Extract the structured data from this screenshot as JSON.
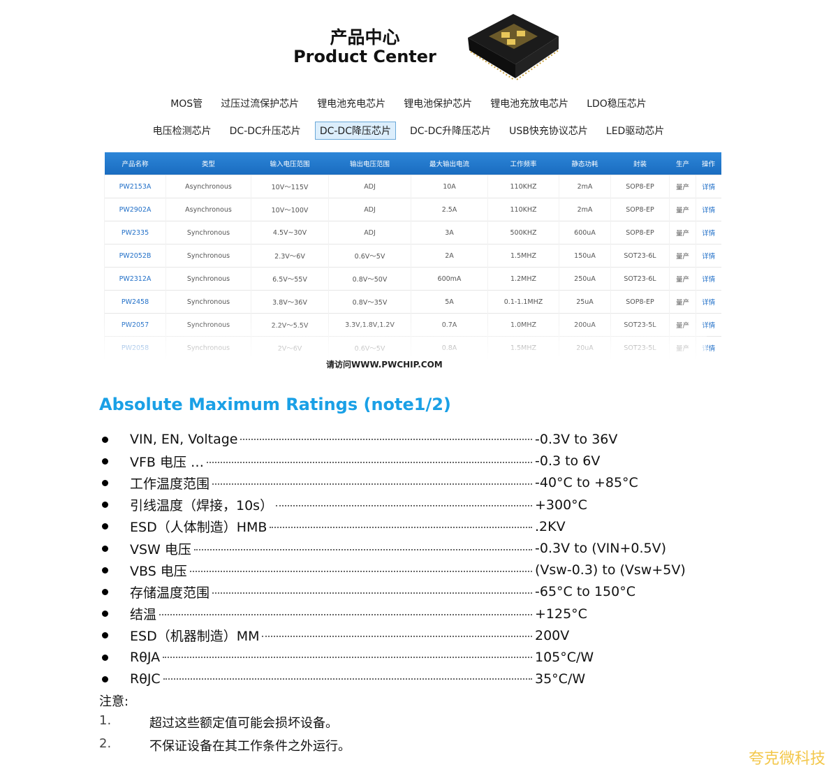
{
  "header": {
    "title": "产品中心",
    "subtitle": "Product Center"
  },
  "nav": {
    "rows": [
      [
        {
          "label": "MOS管"
        },
        {
          "label": "过压过流保护芯片"
        },
        {
          "label": "锂电池充电芯片"
        },
        {
          "label": "锂电池保护芯片"
        },
        {
          "label": "锂电池充放电芯片"
        },
        {
          "label": "LDO稳压芯片"
        }
      ],
      [
        {
          "label": "电压检测芯片"
        },
        {
          "label": "DC-DC升压芯片"
        },
        {
          "label": "DC-DC降压芯片",
          "selected": true
        },
        {
          "label": "DC-DC升降压芯片"
        },
        {
          "label": "USB快充协议芯片"
        },
        {
          "label": "LED驱动芯片"
        }
      ]
    ]
  },
  "table": {
    "columns": [
      "产品名称",
      "类型",
      "输入电压范围",
      "输出电压范围",
      "最大输出电流",
      "工作频率",
      "静态功耗",
      "封装",
      "生产",
      "操作"
    ],
    "rows": [
      [
        "PW2153A",
        "Asynchronous",
        "10V～115V",
        "ADJ",
        "10A",
        "110KHZ",
        "2mA",
        "SOP8-EP",
        "量产",
        "详情"
      ],
      [
        "PW2902A",
        "Asynchronous",
        "10V～100V",
        "ADJ",
        "2.5A",
        "110KHZ",
        "2mA",
        "SOP8-EP",
        "量产",
        "详情"
      ],
      [
        "PW2335",
        "Synchronous",
        "4.5V~30V",
        "ADJ",
        "3A",
        "500KHZ",
        "600uA",
        "SOP8-EP",
        "量产",
        "详情"
      ],
      [
        "PW2052B",
        "Synchronous",
        "2.3V～6V",
        "0.6V～5V",
        "2A",
        "1.5MHZ",
        "150uA",
        "SOT23-6L",
        "量产",
        "详情"
      ],
      [
        "PW2312A",
        "Synchronous",
        "6.5V～55V",
        "0.8V～50V",
        "600mA",
        "1.2MHZ",
        "250uA",
        "SOT23-6L",
        "量产",
        "详情"
      ],
      [
        "PW2458",
        "Synchronous",
        "3.8V～36V",
        "0.8V～35V",
        "5A",
        "0.1-1.1MHZ",
        "25uA",
        "SOP8-EP",
        "量产",
        "详情"
      ],
      [
        "PW2057",
        "Synchronous",
        "2.2V～5.5V",
        "3.3V,1.8V,1.2V",
        "0.7A",
        "1.0MHZ",
        "200uA",
        "SOT23-5L",
        "量产",
        "详情"
      ],
      [
        "PW2058",
        "Synchronous",
        "2V～6V",
        "0.6V～5V",
        "0.8A",
        "1.5MHZ",
        "20uA",
        "SOT23-5L",
        "量产",
        "详情"
      ]
    ],
    "notice": "请访问WWW.PWCHIP.COM"
  },
  "ratings": {
    "title": "Absolute Maximum Ratings (note1/2)",
    "items": [
      {
        "label": "VIN, EN, Voltage",
        "value": "-0.3V to 36V"
      },
      {
        "label": "VFB  电压 …",
        "value": "-0.3 to 6V"
      },
      {
        "label": "工作温度范围",
        "value": "-40°C to +85°C"
      },
      {
        "label": "引线温度（焊接，10s）",
        "value": "+300°C"
      },
      {
        "label": "ESD（人体制造）HMB",
        "value": ".2KV"
      },
      {
        "label": "VSW  电压",
        "value": "-0.3V to (VIN+0.5V)"
      },
      {
        "label": "VBS 电压",
        "value": "(Vsw-0.3) to (Vsw+5V)"
      },
      {
        "label": "存储温度范围",
        "value": "-65°C to 150°C"
      },
      {
        "label": "结温",
        "value": "+125°C"
      },
      {
        "label": "ESD（机器制造）MM",
        "value": "200V"
      },
      {
        "label": "RθJA",
        "value": "105°C/W"
      },
      {
        "label": "RθJC",
        "value": "35°C/W"
      }
    ],
    "note_title": "注意:",
    "notes": [
      {
        "number": "1.",
        "text": "超过这些额定值可能会损坏设备。"
      },
      {
        "number": "2.",
        "text": "不保证设备在其工作条件之外运行。"
      }
    ]
  },
  "watermark": "夸克微科技"
}
